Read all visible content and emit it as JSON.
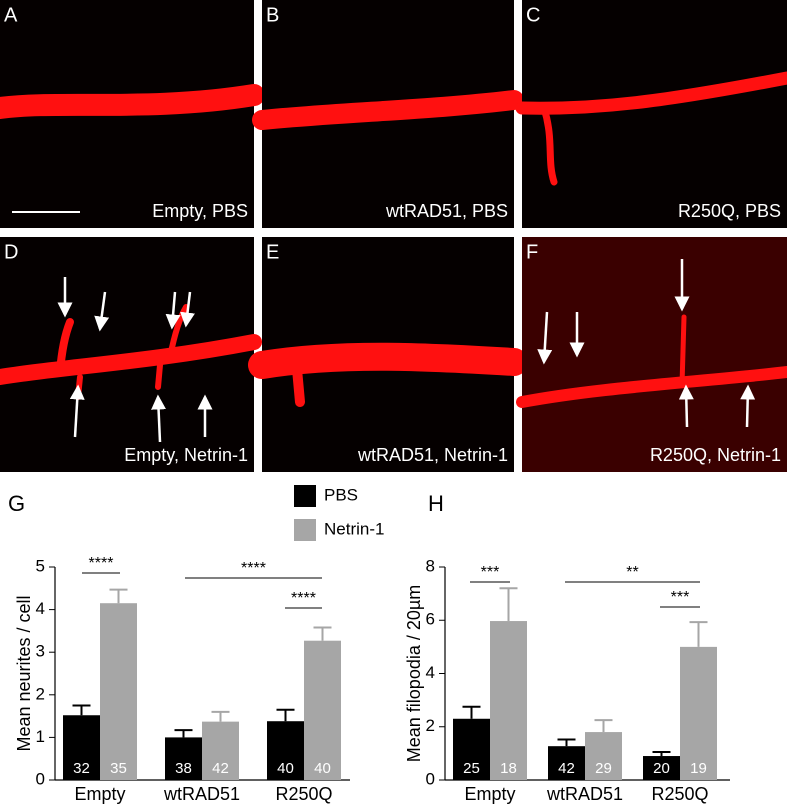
{
  "panels": [
    {
      "letter": "A",
      "caption": "Empty, PBS"
    },
    {
      "letter": "B",
      "caption": "wtRAD51, PBS"
    },
    {
      "letter": "C",
      "caption": "R250Q, PBS"
    },
    {
      "letter": "D",
      "caption": "Empty, Netrin-1"
    },
    {
      "letter": "E",
      "caption": "wtRAD51, Netrin-1"
    },
    {
      "letter": "F",
      "caption": "R250Q, Netrin-1"
    }
  ],
  "chart_data": [
    {
      "type": "bar",
      "panel": "G",
      "ylabel": "Mean neurites / cell",
      "categories": [
        "Empty",
        "wtRAD51",
        "R250Q"
      ],
      "series": [
        {
          "name": "PBS",
          "color": "#000000",
          "values": [
            1.52,
            1.0,
            1.38
          ],
          "errors": [
            0.23,
            0.17,
            0.27
          ],
          "n": [
            32,
            38,
            40
          ]
        },
        {
          "name": "Netrin-1",
          "color": "#a6a6a6",
          "values": [
            4.15,
            1.37,
            3.27
          ],
          "errors": [
            0.32,
            0.23,
            0.31
          ],
          "n": [
            35,
            42,
            40
          ]
        }
      ],
      "ylim": [
        0,
        5
      ],
      "yticks": [
        0,
        1,
        2,
        3,
        4,
        5
      ],
      "annotations": [
        "****",
        "****",
        "****"
      ]
    },
    {
      "type": "bar",
      "panel": "H",
      "ylabel": "Mean filopodia / 20µm",
      "categories": [
        "Empty",
        "wtRAD51",
        "R250Q"
      ],
      "series": [
        {
          "name": "PBS",
          "color": "#000000",
          "values": [
            2.3,
            1.27,
            0.9
          ],
          "errors": [
            0.45,
            0.25,
            0.15
          ],
          "n": [
            25,
            42,
            20
          ]
        },
        {
          "name": "Netrin-1",
          "color": "#a6a6a6",
          "values": [
            5.97,
            1.8,
            5.0
          ],
          "errors": [
            1.23,
            0.45,
            0.93
          ],
          "n": [
            18,
            29,
            19
          ]
        }
      ],
      "ylim": [
        0,
        8
      ],
      "yticks": [
        0,
        2,
        4,
        6,
        8
      ],
      "annotations": [
        "***",
        "**",
        "***"
      ]
    }
  ]
}
